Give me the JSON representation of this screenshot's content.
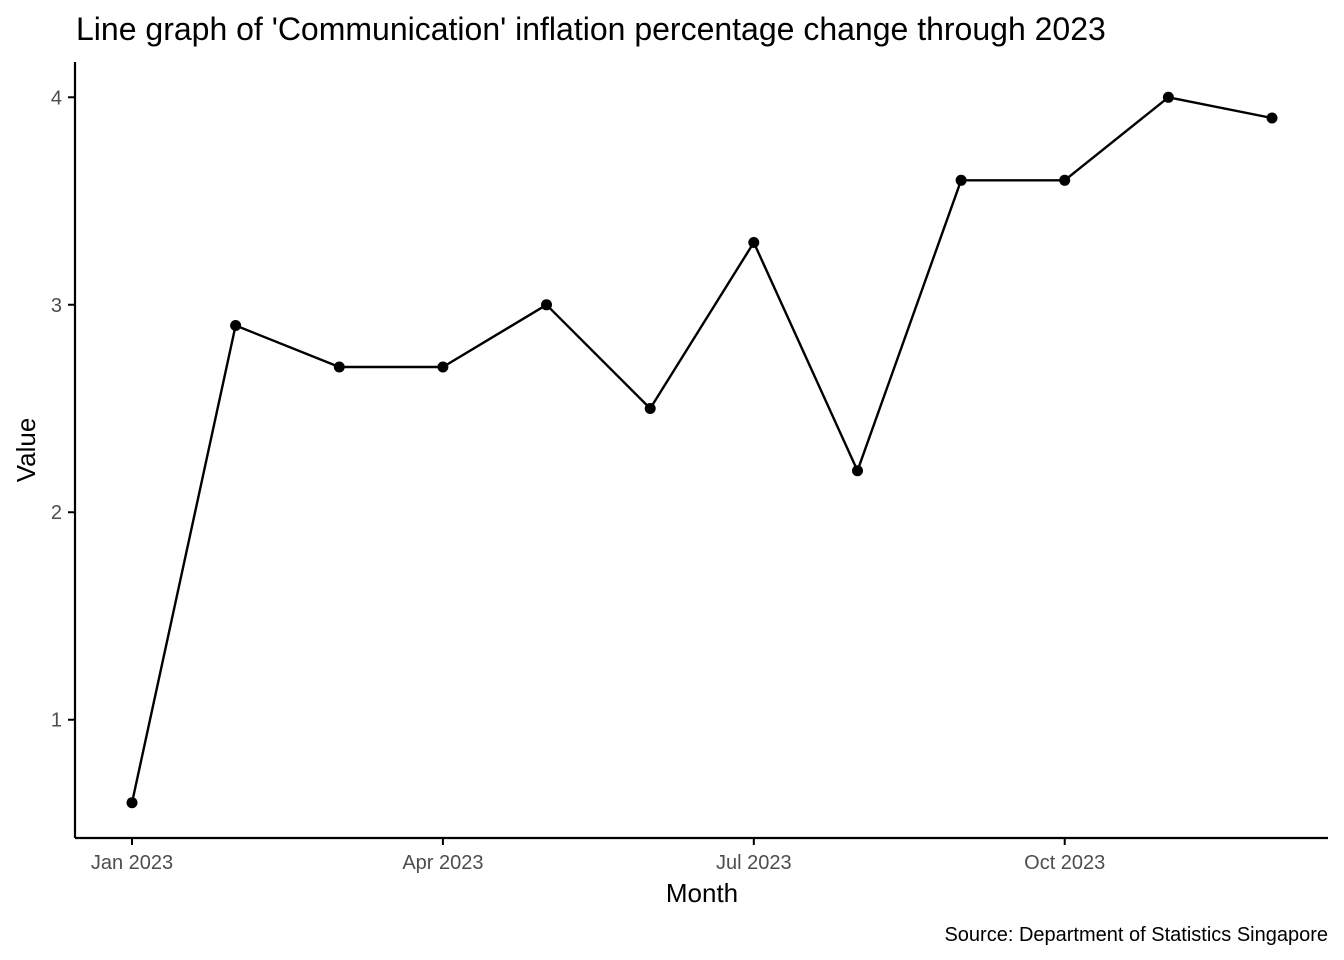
{
  "chart_data": {
    "type": "line",
    "title": "Line graph of 'Communication' inflation percentage change through 2023",
    "xlabel": "Month",
    "ylabel": "Value",
    "caption": "Source: Department of Statistics Singapore",
    "x": [
      "2023-01",
      "2023-02",
      "2023-03",
      "2023-04",
      "2023-05",
      "2023-06",
      "2023-07",
      "2023-08",
      "2023-09",
      "2023-10",
      "2023-11",
      "2023-12"
    ],
    "series": [
      {
        "values": [
          0.6,
          2.9,
          2.7,
          2.7,
          3.0,
          2.5,
          3.3,
          2.2,
          3.6,
          3.6,
          4.0,
          3.9
        ]
      }
    ],
    "x_ticks": [
      {
        "at": "2023-01",
        "label": "Jan 2023"
      },
      {
        "at": "2023-04",
        "label": "Apr 2023"
      },
      {
        "at": "2023-07",
        "label": "Jul 2023"
      },
      {
        "at": "2023-10",
        "label": "Oct 2023"
      }
    ],
    "y_ticks": [
      1,
      2,
      3,
      4
    ],
    "ylim": [
      0.43,
      4.17
    ],
    "grid": false,
    "legend": "none",
    "colors": {
      "line": "#000000",
      "points": "#000000",
      "axis": "#000000",
      "tick_labels": "#4d4d4d"
    }
  }
}
